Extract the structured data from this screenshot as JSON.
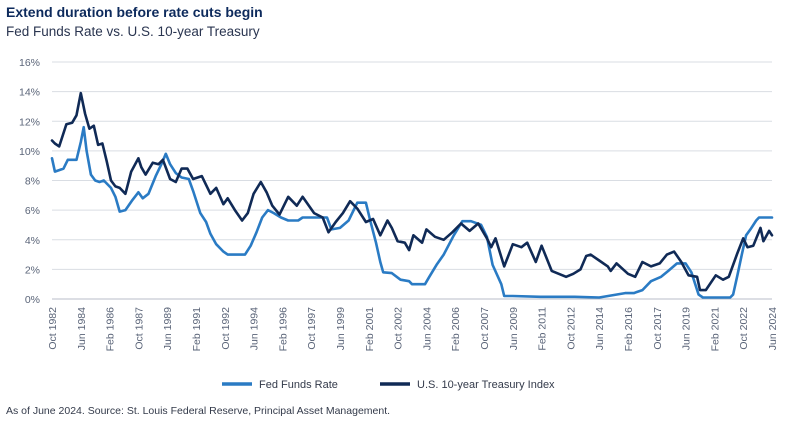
{
  "title": "Extend duration before rate cuts begin",
  "subtitle": "Fed Funds Rate vs. U.S. 10-year Treasury",
  "source": "As of June 2024. Source: St. Louis Federal Reserve, Principal Asset Management.",
  "colors": {
    "fed": "#2a7bc4",
    "treasury": "#102a56",
    "grid": "#d9dde3"
  },
  "chart_data": {
    "type": "line",
    "title": "Extend duration before rate cuts begin",
    "subtitle": "Fed Funds Rate vs. U.S. 10-year Treasury",
    "ylim": [
      0,
      16
    ],
    "y_ticks": [
      0,
      2,
      4,
      6,
      8,
      10,
      12,
      14,
      16
    ],
    "y_tick_labels": [
      "0%",
      "2%",
      "4%",
      "6%",
      "8%",
      "10%",
      "12%",
      "14%",
      "16%"
    ],
    "x_range": [
      "1982-10",
      "2024-06"
    ],
    "x_tick_labels": [
      "Oct 1982",
      "Jun 1984",
      "Feb 1986",
      "Oct 1987",
      "Jun 1989",
      "Feb 1991",
      "Oct 1992",
      "Jun 1994",
      "Feb 1996",
      "Oct 1997",
      "Jun 1999",
      "Feb 2001",
      "Oct 2002",
      "Jun 2004",
      "Feb 2006",
      "Oct 2007",
      "Jun 2009",
      "Feb 2011",
      "Oct 2012",
      "Jun 2014",
      "Feb 2016",
      "Oct 2017",
      "Jun 2019",
      "Feb 2021",
      "Oct 2022",
      "Jun 2024"
    ],
    "grid": "horizontal",
    "legend_position": "bottom",
    "series": [
      {
        "name": "Fed Funds Rate",
        "color": "#2a7bc4",
        "points": [
          [
            "1982-10",
            9.5
          ],
          [
            "1982-12",
            8.6
          ],
          [
            "1983-06",
            8.8
          ],
          [
            "1983-09",
            9.4
          ],
          [
            "1984-03",
            9.4
          ],
          [
            "1984-06",
            10.6
          ],
          [
            "1984-08",
            11.6
          ],
          [
            "1984-10",
            10.0
          ],
          [
            "1985-01",
            8.4
          ],
          [
            "1985-04",
            8.0
          ],
          [
            "1985-07",
            7.9
          ],
          [
            "1985-10",
            8.0
          ],
          [
            "1986-03",
            7.5
          ],
          [
            "1986-06",
            6.9
          ],
          [
            "1986-09",
            5.9
          ],
          [
            "1987-01",
            6.0
          ],
          [
            "1987-06",
            6.7
          ],
          [
            "1987-10",
            7.2
          ],
          [
            "1988-01",
            6.8
          ],
          [
            "1988-05",
            7.1
          ],
          [
            "1988-10",
            8.3
          ],
          [
            "1989-02",
            9.1
          ],
          [
            "1989-05",
            9.8
          ],
          [
            "1989-08",
            9.1
          ],
          [
            "1989-12",
            8.5
          ],
          [
            "1990-04",
            8.2
          ],
          [
            "1990-09",
            8.1
          ],
          [
            "1990-12",
            7.3
          ],
          [
            "1991-05",
            5.8
          ],
          [
            "1991-09",
            5.2
          ],
          [
            "1991-12",
            4.4
          ],
          [
            "1992-04",
            3.7
          ],
          [
            "1992-09",
            3.2
          ],
          [
            "1992-12",
            3.0
          ],
          [
            "1993-06",
            3.0
          ],
          [
            "1993-12",
            3.0
          ],
          [
            "1994-04",
            3.6
          ],
          [
            "1994-08",
            4.5
          ],
          [
            "1994-12",
            5.5
          ],
          [
            "1995-04",
            6.0
          ],
          [
            "1995-08",
            5.8
          ],
          [
            "1996-01",
            5.5
          ],
          [
            "1996-06",
            5.3
          ],
          [
            "1997-01",
            5.3
          ],
          [
            "1997-04",
            5.5
          ],
          [
            "1998-01",
            5.5
          ],
          [
            "1998-09",
            5.5
          ],
          [
            "1998-12",
            4.7
          ],
          [
            "1999-06",
            4.8
          ],
          [
            "1999-12",
            5.3
          ],
          [
            "2000-06",
            6.5
          ],
          [
            "2000-12",
            6.5
          ],
          [
            "2001-03",
            5.3
          ],
          [
            "2001-07",
            3.8
          ],
          [
            "2001-10",
            2.5
          ],
          [
            "2001-12",
            1.8
          ],
          [
            "2002-06",
            1.75
          ],
          [
            "2002-12",
            1.3
          ],
          [
            "2003-06",
            1.2
          ],
          [
            "2003-08",
            1.0
          ],
          [
            "2004-05",
            1.0
          ],
          [
            "2004-08",
            1.5
          ],
          [
            "2005-01",
            2.3
          ],
          [
            "2005-06",
            3.0
          ],
          [
            "2006-01",
            4.3
          ],
          [
            "2006-07",
            5.25
          ],
          [
            "2007-01",
            5.25
          ],
          [
            "2007-08",
            5.0
          ],
          [
            "2007-12",
            4.2
          ],
          [
            "2008-04",
            2.3
          ],
          [
            "2008-10",
            1.0
          ],
          [
            "2008-12",
            0.2
          ],
          [
            "2009-06",
            0.2
          ],
          [
            "2011-01",
            0.15
          ],
          [
            "2013-01",
            0.15
          ],
          [
            "2014-06",
            0.1
          ],
          [
            "2015-12",
            0.4
          ],
          [
            "2016-06",
            0.4
          ],
          [
            "2016-12",
            0.6
          ],
          [
            "2017-06",
            1.2
          ],
          [
            "2018-01",
            1.5
          ],
          [
            "2018-06",
            1.9
          ],
          [
            "2018-12",
            2.4
          ],
          [
            "2019-06",
            2.4
          ],
          [
            "2019-10",
            1.8
          ],
          [
            "2020-03",
            0.3
          ],
          [
            "2020-06",
            0.1
          ],
          [
            "2021-06",
            0.1
          ],
          [
            "2022-01",
            0.1
          ],
          [
            "2022-03",
            0.3
          ],
          [
            "2022-06",
            1.6
          ],
          [
            "2022-09",
            3.0
          ],
          [
            "2022-12",
            4.3
          ],
          [
            "2023-03",
            4.7
          ],
          [
            "2023-07",
            5.3
          ],
          [
            "2023-09",
            5.5
          ],
          [
            "2024-06",
            5.5
          ]
        ]
      },
      {
        "name": "U.S. 10-year Treasury Index",
        "color": "#102a56",
        "points": [
          [
            "1982-10",
            10.7
          ],
          [
            "1982-12",
            10.5
          ],
          [
            "1983-03",
            10.3
          ],
          [
            "1983-08",
            11.8
          ],
          [
            "1983-12",
            11.9
          ],
          [
            "1984-03",
            12.4
          ],
          [
            "1984-06",
            13.9
          ],
          [
            "1984-09",
            12.5
          ],
          [
            "1984-12",
            11.5
          ],
          [
            "1985-03",
            11.7
          ],
          [
            "1985-06",
            10.4
          ],
          [
            "1985-09",
            10.5
          ],
          [
            "1985-12",
            9.3
          ],
          [
            "1986-03",
            8.0
          ],
          [
            "1986-06",
            7.6
          ],
          [
            "1986-09",
            7.5
          ],
          [
            "1987-01",
            7.1
          ],
          [
            "1987-05",
            8.6
          ],
          [
            "1987-10",
            9.5
          ],
          [
            "1987-12",
            8.9
          ],
          [
            "1988-03",
            8.4
          ],
          [
            "1988-08",
            9.2
          ],
          [
            "1988-12",
            9.1
          ],
          [
            "1989-03",
            9.4
          ],
          [
            "1989-08",
            8.1
          ],
          [
            "1989-12",
            7.9
          ],
          [
            "1990-04",
            8.8
          ],
          [
            "1990-08",
            8.8
          ],
          [
            "1990-12",
            8.1
          ],
          [
            "1991-06",
            8.3
          ],
          [
            "1991-12",
            7.1
          ],
          [
            "1992-04",
            7.5
          ],
          [
            "1992-09",
            6.4
          ],
          [
            "1992-12",
            6.8
          ],
          [
            "1993-05",
            6.0
          ],
          [
            "1993-10",
            5.3
          ],
          [
            "1994-02",
            5.8
          ],
          [
            "1994-06",
            7.1
          ],
          [
            "1994-11",
            7.9
          ],
          [
            "1995-03",
            7.2
          ],
          [
            "1995-07",
            6.3
          ],
          [
            "1995-12",
            5.7
          ],
          [
            "1996-06",
            6.9
          ],
          [
            "1996-12",
            6.3
          ],
          [
            "1997-04",
            6.9
          ],
          [
            "1997-12",
            5.8
          ],
          [
            "1998-06",
            5.5
          ],
          [
            "1998-10",
            4.5
          ],
          [
            "1999-03",
            5.2
          ],
          [
            "1999-08",
            5.8
          ],
          [
            "2000-01",
            6.6
          ],
          [
            "2000-06",
            6.1
          ],
          [
            "2000-12",
            5.2
          ],
          [
            "2001-05",
            5.4
          ],
          [
            "2001-10",
            4.3
          ],
          [
            "2002-03",
            5.3
          ],
          [
            "2002-06",
            4.8
          ],
          [
            "2002-10",
            3.9
          ],
          [
            "2003-03",
            3.8
          ],
          [
            "2003-06",
            3.3
          ],
          [
            "2003-09",
            4.3
          ],
          [
            "2004-03",
            3.8
          ],
          [
            "2004-06",
            4.7
          ],
          [
            "2004-12",
            4.2
          ],
          [
            "2005-06",
            4.0
          ],
          [
            "2005-12",
            4.5
          ],
          [
            "2006-06",
            5.1
          ],
          [
            "2006-12",
            4.6
          ],
          [
            "2007-06",
            5.1
          ],
          [
            "2007-12",
            4.1
          ],
          [
            "2008-03",
            3.5
          ],
          [
            "2008-06",
            4.1
          ],
          [
            "2008-12",
            2.2
          ],
          [
            "2009-06",
            3.7
          ],
          [
            "2009-12",
            3.5
          ],
          [
            "2010-04",
            3.8
          ],
          [
            "2010-10",
            2.5
          ],
          [
            "2011-02",
            3.6
          ],
          [
            "2011-09",
            1.9
          ],
          [
            "2012-07",
            1.5
          ],
          [
            "2012-12",
            1.7
          ],
          [
            "2013-05",
            2.0
          ],
          [
            "2013-09",
            2.9
          ],
          [
            "2013-12",
            3.0
          ],
          [
            "2014-06",
            2.6
          ],
          [
            "2014-12",
            2.2
          ],
          [
            "2015-02",
            1.9
          ],
          [
            "2015-06",
            2.4
          ],
          [
            "2016-02",
            1.7
          ],
          [
            "2016-07",
            1.5
          ],
          [
            "2016-12",
            2.5
          ],
          [
            "2017-06",
            2.2
          ],
          [
            "2017-12",
            2.4
          ],
          [
            "2018-05",
            3.0
          ],
          [
            "2018-10",
            3.2
          ],
          [
            "2019-03",
            2.5
          ],
          [
            "2019-08",
            1.6
          ],
          [
            "2020-02",
            1.5
          ],
          [
            "2020-04",
            0.6
          ],
          [
            "2020-08",
            0.6
          ],
          [
            "2021-03",
            1.6
          ],
          [
            "2021-08",
            1.3
          ],
          [
            "2021-12",
            1.5
          ],
          [
            "2022-03",
            2.3
          ],
          [
            "2022-06",
            3.1
          ],
          [
            "2022-10",
            4.1
          ],
          [
            "2023-01",
            3.5
          ],
          [
            "2023-05",
            3.6
          ],
          [
            "2023-10",
            4.8
          ],
          [
            "2023-12",
            3.9
          ],
          [
            "2024-04",
            4.6
          ],
          [
            "2024-06",
            4.3
          ]
        ]
      }
    ]
  }
}
